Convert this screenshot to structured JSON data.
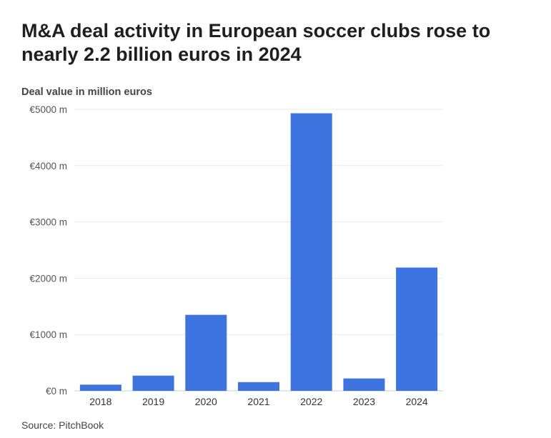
{
  "title": "M&A deal activity in European soccer clubs rose to nearly 2.2 billion euros in 2024",
  "source": "Source: PitchBook",
  "colors": {
    "bar": "#3d74e0",
    "grid": "#e9e9e9",
    "axis": "#cccccc"
  },
  "chart_data": {
    "type": "bar",
    "title": "M&A deal activity in European soccer clubs rose to nearly 2.2 billion euros in 2024",
    "ylabel": "Deal value in million euros",
    "xlabel": "",
    "categories": [
      "2018",
      "2019",
      "2020",
      "2021",
      "2022",
      "2023",
      "2024"
    ],
    "values": [
      110,
      270,
      1350,
      155,
      4930,
      220,
      2190
    ],
    "ylim": [
      0,
      5000
    ],
    "yticks": [
      0,
      1000,
      2000,
      3000,
      4000,
      5000
    ],
    "ytick_labels": [
      "€0 m",
      "€1000 m",
      "€2000 m",
      "€3000 m",
      "€4000 m",
      "€5000 m"
    ],
    "grid": true,
    "legend": "none"
  }
}
